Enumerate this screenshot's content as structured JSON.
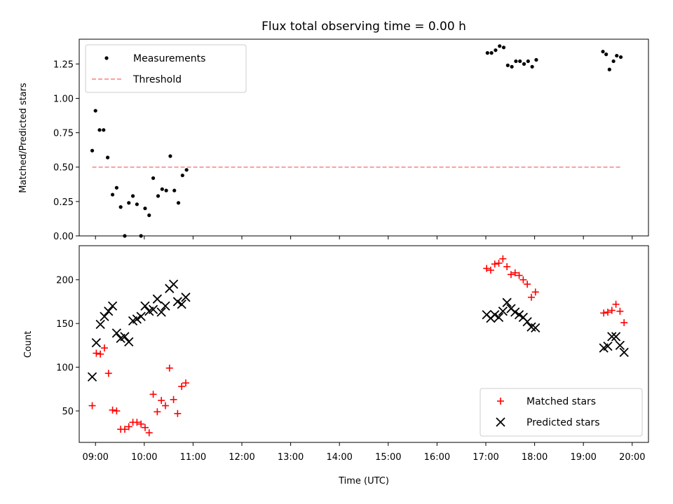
{
  "figure": {
    "title": "Flux total observing time = 0.00 h"
  },
  "chart_data": [
    {
      "type": "scatter",
      "ylabel": "Matched/Predicted stars",
      "xlabel": "",
      "xlim": [
        "08:40",
        "20:20"
      ],
      "ylim": [
        0,
        1.43
      ],
      "yticks": [
        "0.00",
        "0.25",
        "0.50",
        "0.75",
        "1.00",
        "1.25"
      ],
      "legend_position": "upper-left",
      "series": [
        {
          "name": "Measurements",
          "marker": "dot",
          "color": "#000000",
          "x": [
            "08:56",
            "09:00",
            "09:05",
            "09:10",
            "09:15",
            "09:21",
            "09:26",
            "09:31",
            "09:36",
            "09:41",
            "09:46",
            "09:51",
            "09:56",
            "10:01",
            "10:06",
            "10:11",
            "10:17",
            "10:22",
            "10:27",
            "10:32",
            "10:37",
            "10:42",
            "10:47",
            "10:52",
            "17:02",
            "17:07",
            "17:12",
            "17:17",
            "17:22",
            "17:27",
            "17:32",
            "17:37",
            "17:42",
            "17:47",
            "17:52",
            "17:57",
            "18:02",
            "19:24",
            "19:28",
            "19:32",
            "19:37",
            "19:41",
            "19:46"
          ],
          "y": [
            0.62,
            0.91,
            0.77,
            0.77,
            0.57,
            0.3,
            0.35,
            0.21,
            0.0,
            0.24,
            0.29,
            0.23,
            0.0,
            0.2,
            0.15,
            0.42,
            0.29,
            0.34,
            0.33,
            0.58,
            0.33,
            0.24,
            0.44,
            0.48,
            1.33,
            1.33,
            1.35,
            1.38,
            1.37,
            1.24,
            1.23,
            1.27,
            1.27,
            1.25,
            1.27,
            1.23,
            1.28,
            1.34,
            1.32,
            1.21,
            1.27,
            1.31,
            1.3
          ]
        },
        {
          "name": "Threshold",
          "marker": "dashed-line",
          "color": "#ff7f7f",
          "x": [
            "08:56",
            "19:46"
          ],
          "y": [
            0.5,
            0.5
          ]
        }
      ]
    },
    {
      "type": "scatter",
      "ylabel": "Count",
      "xlabel": "Time (UTC)",
      "xlim": [
        "08:40",
        "20:20"
      ],
      "ylim": [
        14,
        239
      ],
      "yticks": [
        "50",
        "100",
        "150",
        "200"
      ],
      "xticks": [
        "09:00",
        "10:00",
        "11:00",
        "12:00",
        "13:00",
        "14:00",
        "15:00",
        "16:00",
        "17:00",
        "18:00",
        "19:00",
        "20:00"
      ],
      "legend_position": "lower-right",
      "series": [
        {
          "name": "Matched stars",
          "marker": "plus",
          "color": "#ff0000",
          "x": [
            "08:56",
            "09:01",
            "09:06",
            "09:11",
            "09:16",
            "09:21",
            "09:26",
            "09:31",
            "09:36",
            "09:41",
            "09:46",
            "09:51",
            "09:56",
            "10:01",
            "10:06",
            "10:11",
            "10:16",
            "10:21",
            "10:26",
            "10:31",
            "10:36",
            "10:41",
            "10:46",
            "10:51",
            "17:01",
            "17:06",
            "17:11",
            "17:16",
            "17:21",
            "17:26",
            "17:31",
            "17:36",
            "17:41",
            "17:46",
            "17:51",
            "17:56",
            "18:01",
            "19:25",
            "19:30",
            "19:35",
            "19:40",
            "19:45",
            "19:50"
          ],
          "y": [
            56,
            116,
            115,
            122,
            93,
            51,
            50,
            29,
            29,
            32,
            37,
            37,
            35,
            31,
            25,
            69,
            49,
            62,
            56,
            99,
            63,
            47,
            78,
            82,
            213,
            211,
            218,
            219,
            224,
            215,
            206,
            208,
            205,
            200,
            195,
            180,
            186,
            162,
            163,
            165,
            172,
            164,
            151
          ]
        },
        {
          "name": "Predicted stars",
          "marker": "x",
          "color": "#000000",
          "x": [
            "08:56",
            "09:01",
            "09:06",
            "09:11",
            "09:16",
            "09:21",
            "09:26",
            "09:31",
            "09:36",
            "09:41",
            "09:46",
            "09:51",
            "09:56",
            "10:01",
            "10:06",
            "10:11",
            "10:16",
            "10:21",
            "10:26",
            "10:31",
            "10:36",
            "10:41",
            "10:46",
            "10:51",
            "17:01",
            "17:06",
            "17:11",
            "17:16",
            "17:21",
            "17:26",
            "17:31",
            "17:36",
            "17:41",
            "17:46",
            "17:51",
            "17:56",
            "18:01",
            "19:25",
            "19:30",
            "19:35",
            "19:40",
            "19:45",
            "19:50"
          ],
          "y": [
            89,
            128,
            149,
            158,
            164,
            170,
            139,
            133,
            135,
            129,
            153,
            155,
            158,
            170,
            164,
            166,
            178,
            163,
            170,
            190,
            195,
            175,
            172,
            180,
            160,
            156,
            160,
            157,
            164,
            174,
            167,
            163,
            160,
            157,
            152,
            146,
            145,
            122,
            124,
            135,
            135,
            125,
            117
          ]
        }
      ]
    }
  ]
}
